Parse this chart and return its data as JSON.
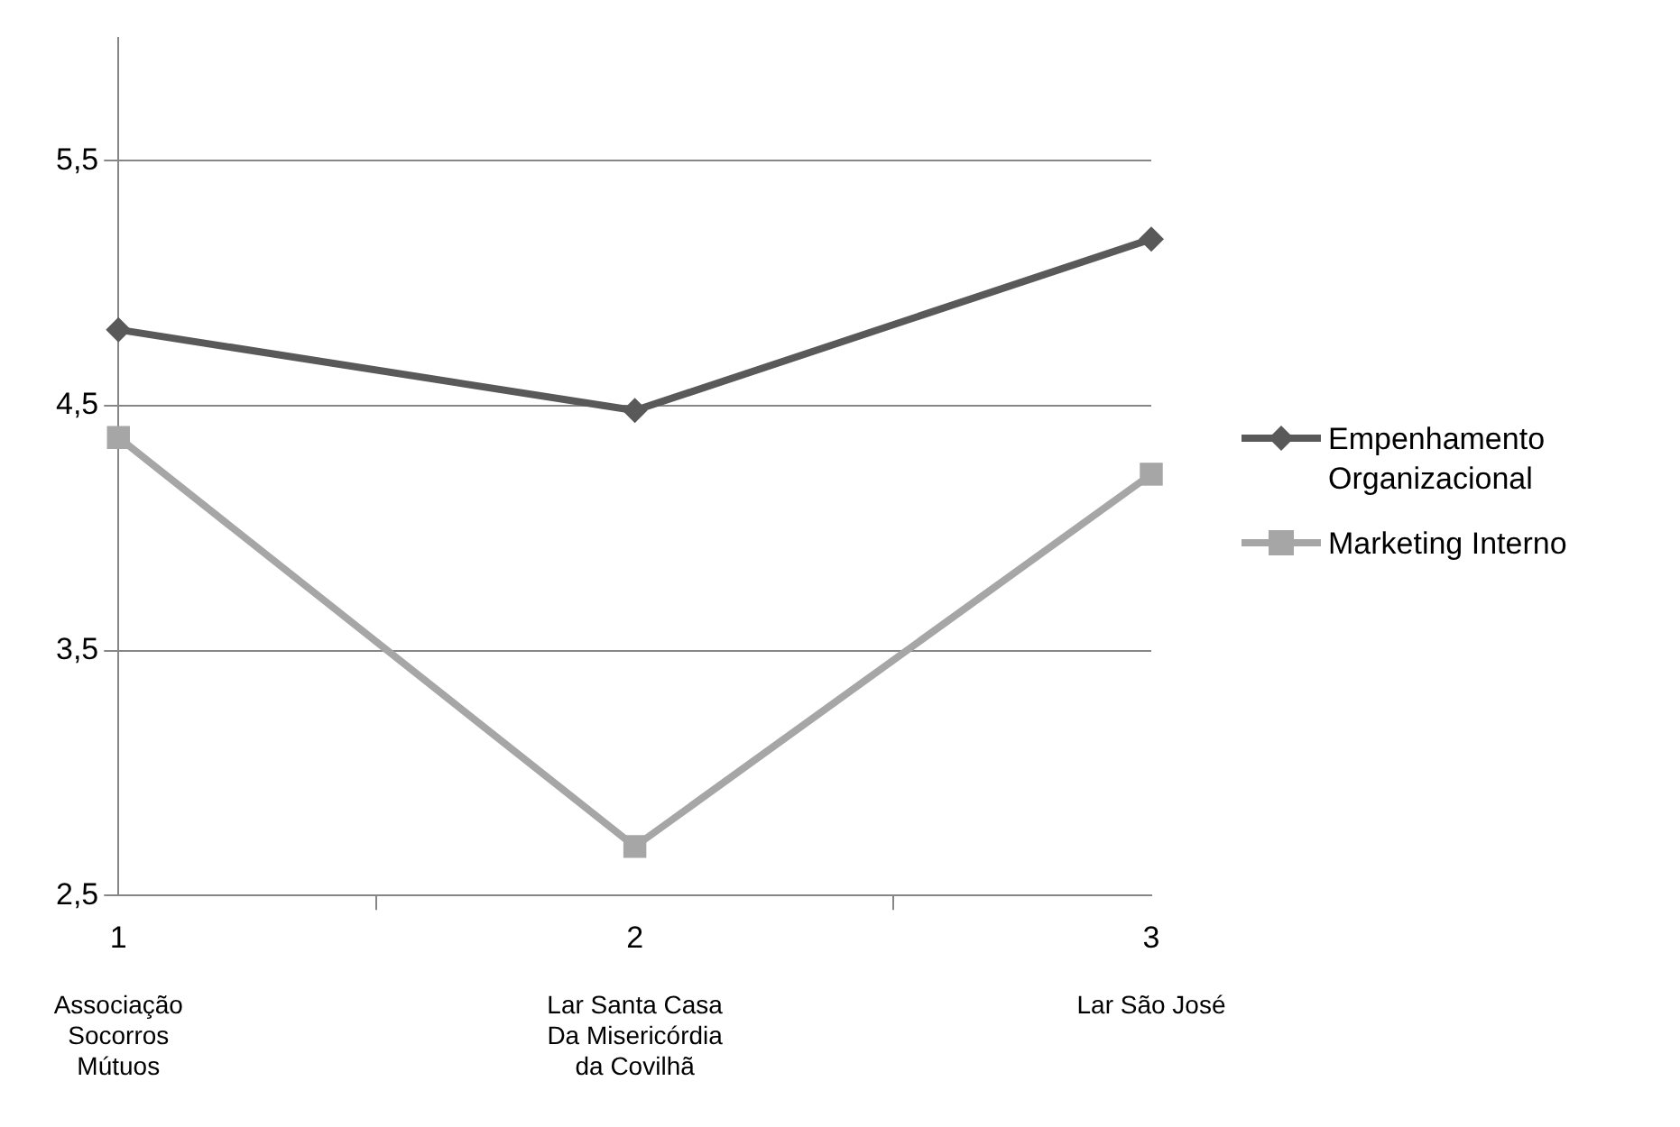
{
  "chart_data": {
    "type": "line",
    "categories": [
      "1",
      "2",
      "3"
    ],
    "series": [
      {
        "name": "Empenhamento Organizacional",
        "color": "#595959",
        "values": [
          4.81,
          4.48,
          5.18
        ],
        "marker": "diamond"
      },
      {
        "name": "Marketing Interno",
        "color": "#a6a6a6",
        "values": [
          4.37,
          2.7,
          4.22
        ],
        "marker": "square"
      }
    ],
    "ylim": [
      2.5,
      6
    ],
    "yticks": [
      {
        "value": 2.5,
        "label": "2,5"
      },
      {
        "value": 3.5,
        "label": "3,5"
      },
      {
        "value": 4.5,
        "label": "4,5"
      },
      {
        "value": 5.5,
        "label": "5,5"
      }
    ],
    "annotations": [
      "Associação Socorros Mútuos",
      "Lar Santa Casa Da Misericórdia da Covilhã",
      "Lar São José"
    ],
    "grid": "y",
    "legend": "right",
    "line_style": "solid"
  }
}
